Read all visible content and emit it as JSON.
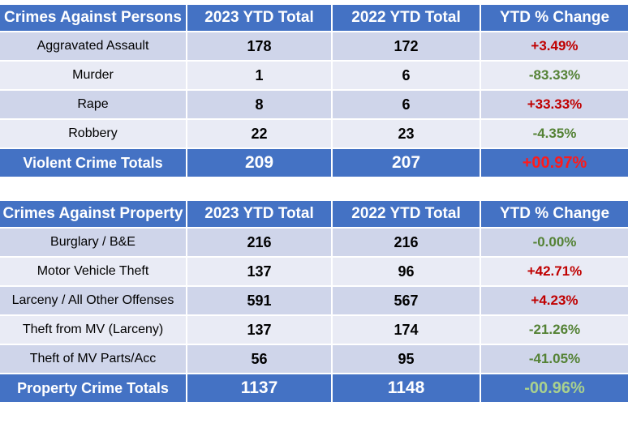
{
  "colors": {
    "header_bg": "#4472c4",
    "row_odd": "#cfd5ea",
    "row_even": "#e9ebf5",
    "increase": "#c00000",
    "decrease": "#548235"
  },
  "tables": [
    {
      "headers": [
        "Crimes Against Persons",
        "2023 YTD Total",
        "2022 YTD Total",
        "YTD % Change"
      ],
      "rows": [
        {
          "label": "Aggravated Assault",
          "y2023": "178",
          "y2022": "172",
          "change": "+3.49%",
          "direction": "up"
        },
        {
          "label": "Murder",
          "y2023": "1",
          "y2022": "6",
          "change": "-83.33%",
          "direction": "down"
        },
        {
          "label": "Rape",
          "y2023": "8",
          "y2022": "6",
          "change": "+33.33%",
          "direction": "up"
        },
        {
          "label": "Robbery",
          "y2023": "22",
          "y2022": "23",
          "change": "-4.35%",
          "direction": "down"
        }
      ],
      "total": {
        "label": "Violent Crime Totals",
        "y2023": "209",
        "y2022": "207",
        "change": "+00.97%",
        "direction": "up"
      }
    },
    {
      "headers": [
        "Crimes Against Property",
        "2023 YTD Total",
        "2022 YTD Total",
        "YTD % Change"
      ],
      "rows": [
        {
          "label": "Burglary / B&E",
          "y2023": "216",
          "y2022": "216",
          "change": "-0.00%",
          "direction": "down"
        },
        {
          "label": "Motor Vehicle Theft",
          "y2023": "137",
          "y2022": "96",
          "change": "+42.71%",
          "direction": "up"
        },
        {
          "label": "Larceny / All Other Offenses",
          "y2023": "591",
          "y2022": "567",
          "change": "+4.23%",
          "direction": "up"
        },
        {
          "label": "Theft from MV (Larceny)",
          "y2023": "137",
          "y2022": "174",
          "change": "-21.26%",
          "direction": "down"
        },
        {
          "label": "Theft of MV Parts/Acc",
          "y2023": "56",
          "y2022": "95",
          "change": "-41.05%",
          "direction": "down"
        }
      ],
      "total": {
        "label": "Property Crime Totals",
        "y2023": "1137",
        "y2022": "1148",
        "change": "-00.96%",
        "direction": "down-light"
      }
    }
  ]
}
